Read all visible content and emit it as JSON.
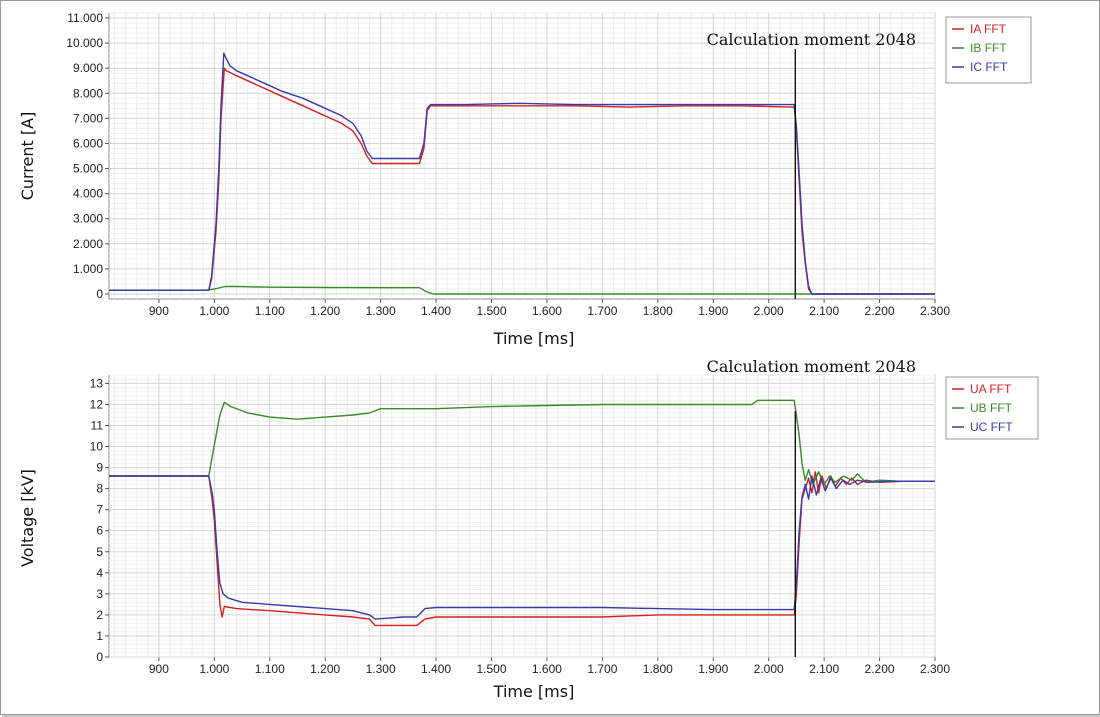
{
  "chart_data": [
    {
      "type": "line",
      "xlabel": "Time [ms]",
      "ylabel": "Current [A]",
      "xlim": [
        810,
        2300
      ],
      "ylim": [
        -200,
        11200
      ],
      "grid": true,
      "legend_position": "top-right",
      "x_ticks": [
        "900",
        "1.000",
        "1.100",
        "1.200",
        "1.300",
        "1.400",
        "1.500",
        "1.600",
        "1.700",
        "1.800",
        "1.900",
        "2.000",
        "2.100",
        "2.200",
        "2.300"
      ],
      "x_tick_values": [
        900,
        1000,
        1100,
        1200,
        1300,
        1400,
        1500,
        1600,
        1700,
        1800,
        1900,
        2000,
        2100,
        2200,
        2300
      ],
      "y_ticks": [
        "0",
        "1.000",
        "2.000",
        "3.000",
        "4.000",
        "5.000",
        "6.000",
        "7.000",
        "8.000",
        "9.000",
        "10.000",
        "11.000"
      ],
      "y_tick_values": [
        0,
        1000,
        2000,
        3000,
        4000,
        5000,
        6000,
        7000,
        8000,
        9000,
        10000,
        11000
      ],
      "annotation": {
        "text": "Calculation moment 2048",
        "x": 2048
      },
      "series": [
        {
          "name": "IA FFT",
          "color": "#d42020",
          "points": [
            [
              810,
              150
            ],
            [
              990,
              150
            ],
            [
              995,
              600
            ],
            [
              1003,
              2500
            ],
            [
              1008,
              4500
            ],
            [
              1012,
              7000
            ],
            [
              1018,
              9000
            ],
            [
              1022,
              8900
            ],
            [
              1040,
              8700
            ],
            [
              1060,
              8500
            ],
            [
              1090,
              8200
            ],
            [
              1120,
              7900
            ],
            [
              1160,
              7500
            ],
            [
              1200,
              7100
            ],
            [
              1230,
              6800
            ],
            [
              1250,
              6500
            ],
            [
              1265,
              6000
            ],
            [
              1275,
              5500
            ],
            [
              1285,
              5200
            ],
            [
              1310,
              5200
            ],
            [
              1340,
              5200
            ],
            [
              1370,
              5200
            ],
            [
              1378,
              5800
            ],
            [
              1384,
              7300
            ],
            [
              1390,
              7500
            ],
            [
              1450,
              7500
            ],
            [
              1550,
              7500
            ],
            [
              1650,
              7500
            ],
            [
              1750,
              7450
            ],
            [
              1850,
              7500
            ],
            [
              1950,
              7500
            ],
            [
              2040,
              7450
            ],
            [
              2046,
              7450
            ],
            [
              2050,
              6500
            ],
            [
              2055,
              4500
            ],
            [
              2060,
              2500
            ],
            [
              2066,
              1200
            ],
            [
              2072,
              200
            ],
            [
              2078,
              0
            ],
            [
              2300,
              0
            ]
          ]
        },
        {
          "name": "IB FFT",
          "color": "#3a8a2a",
          "points": [
            [
              810,
              150
            ],
            [
              985,
              150
            ],
            [
              1000,
              200
            ],
            [
              1020,
              300
            ],
            [
              1040,
              300
            ],
            [
              1100,
              270
            ],
            [
              1200,
              260
            ],
            [
              1300,
              250
            ],
            [
              1370,
              250
            ],
            [
              1382,
              100
            ],
            [
              1395,
              0
            ],
            [
              1500,
              0
            ],
            [
              1800,
              0
            ],
            [
              2100,
              0
            ],
            [
              2300,
              0
            ]
          ]
        },
        {
          "name": "IC FFT",
          "color": "#3a3aa8",
          "points": [
            [
              810,
              150
            ],
            [
              990,
              150
            ],
            [
              995,
              700
            ],
            [
              1003,
              2800
            ],
            [
              1008,
              5000
            ],
            [
              1012,
              7500
            ],
            [
              1017,
              9600
            ],
            [
              1021,
              9400
            ],
            [
              1028,
              9100
            ],
            [
              1040,
              8900
            ],
            [
              1060,
              8700
            ],
            [
              1090,
              8400
            ],
            [
              1120,
              8100
            ],
            [
              1160,
              7800
            ],
            [
              1200,
              7400
            ],
            [
              1230,
              7100
            ],
            [
              1250,
              6800
            ],
            [
              1265,
              6300
            ],
            [
              1275,
              5700
            ],
            [
              1285,
              5400
            ],
            [
              1310,
              5400
            ],
            [
              1340,
              5400
            ],
            [
              1370,
              5400
            ],
            [
              1378,
              6000
            ],
            [
              1384,
              7400
            ],
            [
              1390,
              7550
            ],
            [
              1450,
              7550
            ],
            [
              1550,
              7600
            ],
            [
              1650,
              7550
            ],
            [
              1750,
              7550
            ],
            [
              1850,
              7550
            ],
            [
              1950,
              7550
            ],
            [
              2040,
              7550
            ],
            [
              2046,
              7550
            ],
            [
              2050,
              6700
            ],
            [
              2055,
              4800
            ],
            [
              2060,
              2800
            ],
            [
              2066,
              1300
            ],
            [
              2072,
              300
            ],
            [
              2078,
              0
            ],
            [
              2300,
              0
            ]
          ]
        }
      ]
    },
    {
      "type": "line",
      "xlabel": "Time [ms]",
      "ylabel": "Voltage [kV]",
      "xlim": [
        810,
        2300
      ],
      "ylim": [
        0,
        13.4
      ],
      "grid": true,
      "legend_position": "top-right",
      "x_ticks": [
        "900",
        "1.000",
        "1.100",
        "1.200",
        "1.300",
        "1.400",
        "1.500",
        "1.600",
        "1.700",
        "1.800",
        "1.900",
        "2.000",
        "2.100",
        "2.200",
        "2.300"
      ],
      "x_tick_values": [
        900,
        1000,
        1100,
        1200,
        1300,
        1400,
        1500,
        1600,
        1700,
        1800,
        1900,
        2000,
        2100,
        2200,
        2300
      ],
      "y_ticks": [
        "0",
        "1",
        "2",
        "3",
        "4",
        "5",
        "6",
        "7",
        "8",
        "9",
        "10",
        "11",
        "12",
        "13"
      ],
      "y_tick_values": [
        0,
        1,
        2,
        3,
        4,
        5,
        6,
        7,
        8,
        9,
        10,
        11,
        12,
        13
      ],
      "annotation": {
        "text": "Calculation moment 2048",
        "x": 2048
      },
      "series": [
        {
          "name": "UA FFT",
          "color": "#d42020",
          "points": [
            [
              810,
              8.6
            ],
            [
              990,
              8.6
            ],
            [
              996,
              7.5
            ],
            [
              1000,
              6.5
            ],
            [
              1005,
              4.5
            ],
            [
              1010,
              2.5
            ],
            [
              1014,
              1.9
            ],
            [
              1018,
              2.4
            ],
            [
              1040,
              2.3
            ],
            [
              1100,
              2.2
            ],
            [
              1150,
              2.1
            ],
            [
              1200,
              2.0
            ],
            [
              1250,
              1.9
            ],
            [
              1280,
              1.8
            ],
            [
              1290,
              1.5
            ],
            [
              1340,
              1.5
            ],
            [
              1365,
              1.5
            ],
            [
              1380,
              1.8
            ],
            [
              1400,
              1.9
            ],
            [
              1500,
              1.9
            ],
            [
              1600,
              1.9
            ],
            [
              1700,
              1.9
            ],
            [
              1800,
              2.0
            ],
            [
              1900,
              2.0
            ],
            [
              2000,
              2.0
            ],
            [
              2040,
              2.0
            ],
            [
              2046,
              2.0
            ],
            [
              2050,
              3.0
            ],
            [
              2055,
              5.5
            ],
            [
              2060,
              7.5
            ],
            [
              2066,
              8.0
            ],
            [
              2072,
              8.5
            ],
            [
              2078,
              7.8
            ],
            [
              2084,
              8.8
            ],
            [
              2090,
              7.8
            ],
            [
              2096,
              8.6
            ],
            [
              2104,
              8.0
            ],
            [
              2112,
              8.6
            ],
            [
              2120,
              8.1
            ],
            [
              2130,
              8.5
            ],
            [
              2140,
              8.2
            ],
            [
              2150,
              8.5
            ],
            [
              2160,
              8.2
            ],
            [
              2175,
              8.4
            ],
            [
              2200,
              8.3
            ],
            [
              2240,
              8.35
            ],
            [
              2300,
              8.35
            ]
          ]
        },
        {
          "name": "UB FFT",
          "color": "#3a8a2a",
          "points": [
            [
              810,
              8.6
            ],
            [
              990,
              8.6
            ],
            [
              996,
              9.5
            ],
            [
              1003,
              10.5
            ],
            [
              1010,
              11.5
            ],
            [
              1018,
              12.1
            ],
            [
              1030,
              11.9
            ],
            [
              1060,
              11.6
            ],
            [
              1100,
              11.4
            ],
            [
              1150,
              11.3
            ],
            [
              1200,
              11.4
            ],
            [
              1250,
              11.5
            ],
            [
              1280,
              11.6
            ],
            [
              1300,
              11.8
            ],
            [
              1400,
              11.8
            ],
            [
              1500,
              11.9
            ],
            [
              1600,
              11.95
            ],
            [
              1700,
              12.0
            ],
            [
              1800,
              12.0
            ],
            [
              1900,
              12.0
            ],
            [
              1970,
              12.0
            ],
            [
              1980,
              12.2
            ],
            [
              2040,
              12.2
            ],
            [
              2046,
              12.2
            ],
            [
              2050,
              11.5
            ],
            [
              2055,
              10.5
            ],
            [
              2060,
              9.2
            ],
            [
              2066,
              8.4
            ],
            [
              2072,
              8.9
            ],
            [
              2080,
              8.2
            ],
            [
              2090,
              8.8
            ],
            [
              2100,
              8.2
            ],
            [
              2110,
              8.6
            ],
            [
              2120,
              8.3
            ],
            [
              2135,
              8.6
            ],
            [
              2150,
              8.4
            ],
            [
              2160,
              8.7
            ],
            [
              2175,
              8.3
            ],
            [
              2200,
              8.4
            ],
            [
              2240,
              8.35
            ],
            [
              2300,
              8.35
            ]
          ]
        },
        {
          "name": "UC FFT",
          "color": "#3a3aa8",
          "points": [
            [
              810,
              8.6
            ],
            [
              990,
              8.6
            ],
            [
              996,
              7.8
            ],
            [
              1000,
              7.0
            ],
            [
              1005,
              5.0
            ],
            [
              1010,
              3.5
            ],
            [
              1016,
              3.0
            ],
            [
              1025,
              2.8
            ],
            [
              1050,
              2.6
            ],
            [
              1100,
              2.5
            ],
            [
              1150,
              2.4
            ],
            [
              1200,
              2.3
            ],
            [
              1250,
              2.2
            ],
            [
              1280,
              2.0
            ],
            [
              1290,
              1.8
            ],
            [
              1340,
              1.9
            ],
            [
              1365,
              1.9
            ],
            [
              1380,
              2.3
            ],
            [
              1400,
              2.35
            ],
            [
              1500,
              2.35
            ],
            [
              1600,
              2.35
            ],
            [
              1700,
              2.35
            ],
            [
              1800,
              2.3
            ],
            [
              1900,
              2.25
            ],
            [
              2000,
              2.25
            ],
            [
              2040,
              2.25
            ],
            [
              2046,
              2.25
            ],
            [
              2050,
              3.5
            ],
            [
              2055,
              6.0
            ],
            [
              2060,
              7.6
            ],
            [
              2066,
              8.2
            ],
            [
              2072,
              7.5
            ],
            [
              2078,
              8.6
            ],
            [
              2086,
              7.7
            ],
            [
              2094,
              8.5
            ],
            [
              2102,
              7.9
            ],
            [
              2112,
              8.5
            ],
            [
              2122,
              8.0
            ],
            [
              2134,
              8.4
            ],
            [
              2146,
              8.2
            ],
            [
              2160,
              8.4
            ],
            [
              2180,
              8.3
            ],
            [
              2220,
              8.35
            ],
            [
              2300,
              8.35
            ]
          ]
        }
      ]
    }
  ]
}
